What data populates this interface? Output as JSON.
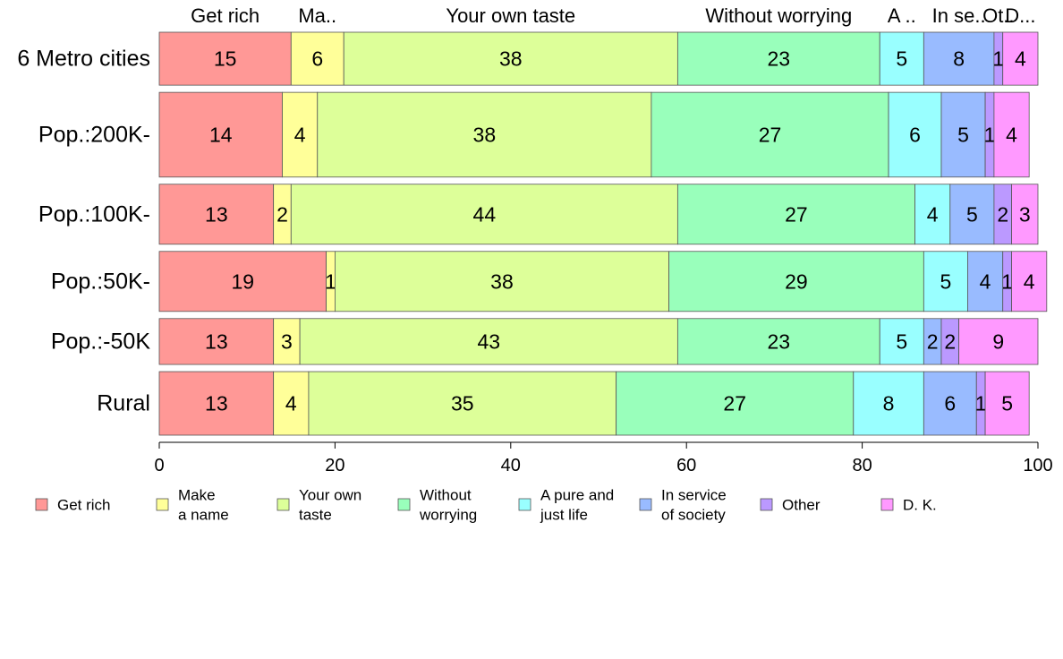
{
  "chart_data": {
    "type": "bar",
    "orientation": "horizontal",
    "stacked": true,
    "categories": [
      "6 Metro cities",
      "Pop.:200K-",
      "Pop.:100K-",
      "Pop.:50K-",
      "Pop.:-50K",
      "Rural"
    ],
    "xlim": [
      0,
      100
    ],
    "xticks": [
      "0",
      "20",
      "40",
      "60",
      "80",
      "100"
    ],
    "top_labels": [
      "Get rich",
      "Ma..",
      "Your own taste",
      "Without worrying",
      "A ..",
      "In se..",
      "Ot..",
      "D..."
    ],
    "series": [
      {
        "name": "Get rich",
        "legend": [
          "Get rich"
        ],
        "color": "#ff9896",
        "values": [
          15,
          14,
          13,
          19,
          13,
          13
        ]
      },
      {
        "name": "Make a name",
        "legend": [
          "Make",
          "a name"
        ],
        "color": "#ffff99",
        "values": [
          6,
          4,
          2,
          1,
          3,
          4
        ]
      },
      {
        "name": "Your own taste",
        "legend": [
          "Your own",
          "taste"
        ],
        "color": "#ddff99",
        "values": [
          38,
          38,
          44,
          38,
          43,
          35
        ]
      },
      {
        "name": "Without worrying",
        "legend": [
          "Without",
          "worrying"
        ],
        "color": "#99ffbb",
        "values": [
          23,
          27,
          27,
          29,
          23,
          27
        ]
      },
      {
        "name": "A pure and just life",
        "legend": [
          "A pure and",
          "just life"
        ],
        "color": "#99ffff",
        "values": [
          5,
          6,
          4,
          5,
          5,
          8
        ]
      },
      {
        "name": "In service of society",
        "legend": [
          "In service",
          "of society"
        ],
        "color": "#99bbff",
        "values": [
          8,
          5,
          5,
          4,
          2,
          6
        ]
      },
      {
        "name": "Other",
        "legend": [
          "Other"
        ],
        "color": "#bb99ff",
        "values": [
          1,
          1,
          2,
          1,
          2,
          1
        ]
      },
      {
        "name": "D. K.",
        "legend": [
          "D. K."
        ],
        "color": "#ff99ff",
        "values": [
          4,
          4,
          3,
          4,
          9,
          5
        ]
      }
    ],
    "bar_widths": [
      15,
      24,
      17,
      17,
      13,
      18
    ],
    "legend_position": "bottom",
    "grid": false
  }
}
